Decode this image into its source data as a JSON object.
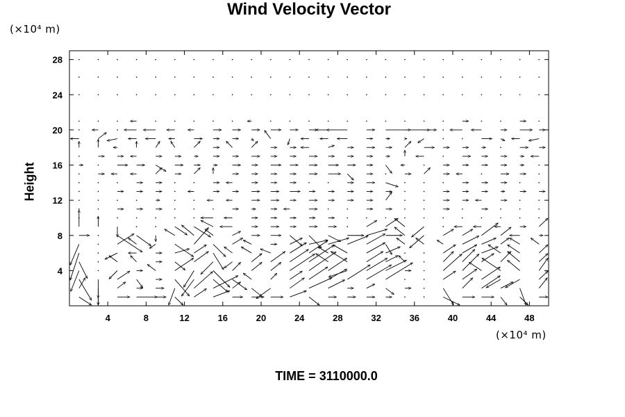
{
  "chart_data": {
    "type": "vector-field",
    "title": "Wind Velocity Vector",
    "ylabel": "Height",
    "x_unit": "(×10⁴ m)",
    "y_unit": "(×10⁴ m)",
    "footer": "TIME = 3110000.0",
    "xlim": [
      0,
      50
    ],
    "ylim": [
      0,
      29
    ],
    "x_ticks": [
      "4",
      "8",
      "12",
      "16",
      "20",
      "24",
      "28",
      "32",
      "36",
      "40",
      "44",
      "48"
    ],
    "y_ticks": [
      "4",
      "8",
      "12",
      "16",
      "20",
      "24",
      "28"
    ],
    "x_tick_values": [
      4,
      8,
      12,
      16,
      20,
      24,
      28,
      32,
      36,
      40,
      44,
      48
    ],
    "y_tick_values": [
      4,
      8,
      12,
      16,
      20,
      24,
      28
    ],
    "grid": false,
    "vectors_rows": [
      {
        "y": 28,
        "u": [
          0,
          0,
          0,
          0,
          0,
          0,
          0,
          0,
          0,
          0,
          0,
          0,
          0,
          0,
          0,
          0,
          0,
          0,
          0,
          0,
          0,
          0,
          0,
          0,
          0
        ],
        "v": [
          0,
          0,
          0,
          0,
          0,
          0,
          0,
          0,
          0,
          0,
          0,
          0,
          0,
          0,
          0,
          0,
          0,
          0,
          0,
          0,
          0,
          0,
          0,
          0,
          0
        ]
      },
      {
        "y": 26,
        "u": [
          0,
          0,
          0,
          0,
          0,
          0,
          0,
          0,
          0,
          0,
          0,
          0,
          0,
          0,
          0,
          0,
          0,
          0,
          0,
          0,
          0,
          0,
          0,
          0,
          0
        ],
        "v": [
          0,
          0,
          0,
          0,
          0,
          0,
          0,
          0,
          0,
          0,
          0,
          0,
          0,
          0,
          0,
          0,
          0,
          0,
          0,
          0,
          0,
          0,
          0,
          0,
          0
        ]
      },
      {
        "y": 24,
        "u": [
          0,
          0,
          0,
          0,
          0,
          0,
          0,
          0,
          0,
          0,
          0,
          0,
          0,
          0,
          0,
          0,
          0,
          0,
          0,
          0,
          0,
          0,
          0,
          0,
          0
        ],
        "v": [
          0,
          0,
          0,
          0,
          0,
          0,
          0,
          0,
          0,
          0,
          0,
          0,
          0,
          0,
          0,
          0,
          0,
          0,
          0,
          0,
          0,
          0,
          0,
          0,
          0
        ]
      },
      {
        "y": 21,
        "u": [
          0,
          0,
          0,
          -0.3,
          0,
          0,
          0,
          0,
          0,
          -0.2,
          0,
          0,
          0,
          0,
          0,
          0,
          0,
          0,
          0,
          0,
          0.3,
          0,
          0,
          0.3,
          0
        ],
        "v": [
          0,
          0,
          0,
          0,
          0,
          0,
          0,
          0,
          0,
          0,
          0,
          0,
          0,
          0,
          0,
          0,
          0,
          0,
          0,
          0,
          0,
          0,
          0,
          0,
          0
        ]
      },
      {
        "y": 20,
        "u": [
          0,
          -0.3,
          0,
          -0.6,
          -0.6,
          -0.4,
          -0.3,
          0.4,
          0.4,
          0.4,
          0.5,
          0.4,
          0.4,
          -0.6,
          -1.0,
          0.4,
          1.2,
          1.2,
          0.6,
          0,
          -0.6,
          -0.5,
          0.3,
          0.6,
          0.3
        ],
        "v": [
          0,
          0,
          0,
          0,
          0,
          0,
          0,
          0,
          0,
          0,
          0,
          0,
          0,
          0,
          0,
          0,
          0,
          0,
          0,
          0,
          0,
          0,
          0,
          0,
          0
        ]
      },
      {
        "y": 19,
        "u": [
          -0.6,
          0.4,
          -0.5,
          -0.4,
          -0.5,
          -0.3,
          0.4,
          0.3,
          0.3,
          0.1,
          -0.3,
          -0.1,
          -0.4,
          -0.4,
          -0.5,
          0.3,
          0.2,
          0.1,
          -0.3,
          0,
          0,
          0.5,
          0.2,
          -0.4,
          -0.5
        ],
        "v": [
          0,
          0.3,
          -0.1,
          0,
          0,
          0,
          0,
          0,
          0,
          -0.1,
          0.4,
          -0.3,
          0,
          0,
          0,
          0,
          0,
          0,
          -0.2,
          0,
          0,
          0,
          -0.1,
          0,
          -0.1
        ]
      },
      {
        "y": 18,
        "u": [
          0,
          0,
          -0.2,
          0,
          0.2,
          -0.2,
          0.3,
          0.3,
          -0.3,
          0.3,
          0.3,
          0.3,
          -0.4,
          0.3,
          0.3,
          0.4,
          0.3,
          0.3,
          0.5,
          0.3,
          0.3,
          0.2,
          0,
          0.4,
          0.3
        ],
        "v": [
          0.3,
          0.4,
          0,
          0.3,
          0.3,
          0.3,
          0.3,
          0,
          0.3,
          0.3,
          0,
          0,
          0,
          0.1,
          0,
          0,
          0,
          0.3,
          0,
          0,
          0,
          0,
          0,
          0,
          0
        ]
      },
      {
        "y": 17,
        "u": [
          0,
          0.3,
          0.3,
          -0.3,
          0.3,
          0.3,
          0.2,
          0.3,
          0.3,
          0.4,
          0.3,
          0.3,
          0.4,
          0.3,
          0.3,
          0.3,
          0.2,
          0,
          -0.4,
          0,
          0.4,
          0.3,
          0.3,
          0.2,
          -0.4
        ],
        "v": [
          0,
          0,
          0,
          0,
          0,
          0,
          0,
          0,
          0,
          0,
          0,
          0,
          0,
          0,
          0,
          0,
          0,
          0.3,
          0,
          0,
          0,
          0,
          0,
          0,
          0
        ]
      },
      {
        "y": 16,
        "u": [
          0.2,
          0,
          0.5,
          0.4,
          0.5,
          0.4,
          0.3,
          0.2,
          0.4,
          0.3,
          0.5,
          0.4,
          0.4,
          0.5,
          0.4,
          0.3,
          0.3,
          -0.2,
          0,
          0.3,
          0.3,
          0.3,
          0.3,
          0.2,
          0
        ],
        "v": [
          0,
          0,
          0,
          0,
          -0.3,
          0,
          0,
          0,
          0,
          0,
          0,
          0,
          0,
          0,
          0,
          0,
          -0.4,
          0,
          0,
          0,
          0,
          0,
          0,
          0,
          0
        ]
      },
      {
        "y": 15,
        "u": [
          0,
          0.3,
          -0.3,
          -0.3,
          0.3,
          0.3,
          0.3,
          0,
          0.3,
          0.3,
          0.3,
          0.3,
          0.4,
          0.6,
          0.3,
          0.3,
          0,
          0.3,
          0.3,
          0.3,
          -0.3,
          0,
          0.4,
          0.3,
          0
        ],
        "v": [
          0,
          0,
          0,
          0,
          0.3,
          0,
          0.3,
          0.3,
          0,
          0,
          0,
          0,
          0,
          0,
          -0.3,
          0,
          0,
          0,
          0.3,
          0,
          0,
          0,
          0,
          0,
          0
        ]
      },
      {
        "y": 14,
        "u": [
          0,
          0,
          0,
          0.3,
          0.3,
          0,
          0,
          0.3,
          -0.3,
          0.3,
          0.3,
          0.3,
          0,
          0,
          0.3,
          0.4,
          0.6,
          0,
          0,
          0,
          0.3,
          0.3,
          0.3,
          0,
          0
        ],
        "v": [
          0,
          0,
          0,
          0,
          0,
          0,
          0,
          0,
          0,
          0,
          0,
          0,
          0,
          0,
          0,
          0,
          -0.2,
          0,
          0,
          0,
          0,
          0,
          0,
          0,
          0
        ]
      },
      {
        "y": 13,
        "u": [
          0,
          0,
          0.3,
          0.3,
          0.3,
          0,
          -0.3,
          0.3,
          0.3,
          0.4,
          0.4,
          0.5,
          0.3,
          0.3,
          0.3,
          0.3,
          0.3,
          0,
          0,
          0.3,
          0.3,
          0.3,
          0.2,
          0.3,
          0.3
        ],
        "v": [
          0,
          0,
          0,
          0,
          0,
          0,
          0,
          0,
          0,
          0,
          0,
          0,
          0,
          0,
          0,
          0,
          0,
          0,
          0,
          0,
          0,
          0,
          0,
          0,
          0
        ]
      },
      {
        "y": 12,
        "u": [
          0,
          0,
          0,
          0,
          0.2,
          0,
          0,
          -0.3,
          -0.3,
          0.4,
          0.4,
          0.3,
          0.4,
          0.3,
          0.3,
          0.3,
          0.3,
          0,
          0,
          0.3,
          0.3,
          -0.3,
          0.3,
          0,
          0
        ],
        "v": [
          0,
          0,
          0,
          0,
          0,
          0,
          0,
          0,
          0,
          0,
          0,
          0,
          0,
          0,
          0,
          0,
          0.4,
          0,
          0,
          0,
          0,
          0,
          0,
          0,
          0
        ]
      },
      {
        "y": 11,
        "u": [
          0,
          0,
          0.3,
          0.3,
          0.3,
          0,
          0,
          0,
          0.3,
          0.2,
          0.3,
          -0.3,
          0.4,
          0,
          0,
          0.3,
          0.3,
          0,
          0,
          0.3,
          0,
          0.3,
          0,
          0,
          0
        ],
        "v": [
          0,
          0,
          0,
          0,
          0,
          0,
          0,
          0,
          0,
          0,
          0,
          0,
          0,
          0,
          0,
          0,
          0,
          0,
          0,
          0,
          0,
          0,
          0,
          0,
          0
        ]
      },
      {
        "y": 10,
        "u": [
          0,
          0,
          0,
          0,
          0,
          0,
          0,
          -0.6,
          -0.4,
          0.3,
          0.3,
          0.3,
          0.3,
          0.3,
          0,
          0,
          0,
          0,
          0,
          0,
          0,
          0,
          0,
          0,
          0
        ],
        "v": [
          0,
          0,
          0,
          0,
          0,
          0,
          0,
          0,
          0,
          0,
          0,
          0,
          0,
          0,
          0,
          0,
          0,
          0,
          0,
          0,
          0,
          0,
          0,
          0,
          0
        ]
      },
      {
        "y": 9,
        "u": [
          0,
          0,
          0,
          0,
          0,
          0.6,
          0.8,
          -0.6,
          -0.6,
          0.3,
          0.4,
          0.3,
          0.4,
          0.4,
          0,
          0.5,
          0.6,
          -0.5,
          -0.6,
          0,
          -0.4,
          -0.4,
          -0.3,
          0.3,
          0.5
        ],
        "v": [
          0.8,
          0.5,
          -0.5,
          0,
          0,
          -0.4,
          -0.5,
          0.3,
          0,
          0,
          0,
          0,
          0,
          0,
          0,
          0.3,
          0.4,
          0.4,
          -0.5,
          0,
          0,
          0,
          0,
          0,
          0.4
        ]
      },
      {
        "y": 8,
        "u": [
          0.5,
          0,
          1.2,
          0.7,
          0,
          -0.5,
          -0.6,
          -0.4,
          0.4,
          0.4,
          0.5,
          0.6,
          0.6,
          0.6,
          0.8,
          1.0,
          0.8,
          -0.5,
          -0.7,
          0.5,
          0.5,
          0.8,
          0.5,
          -0.5,
          0.2
        ],
        "v": [
          0,
          0,
          -0.8,
          -0.5,
          -0.3,
          0.3,
          0.5,
          0.3,
          0.2,
          0,
          0,
          -0.5,
          -0.6,
          -0.3,
          0,
          0.3,
          0,
          0.4,
          -0.6,
          0.3,
          0.3,
          0.6,
          0.4,
          0,
          0
        ]
      },
      {
        "y": 7,
        "u": [
          -0.5,
          0,
          0.8,
          -0.4,
          -0.3,
          0.9,
          0.7,
          0.6,
          0.5,
          -0.4,
          0.3,
          0.6,
          0.9,
          1.0,
          1.0,
          0.9,
          0.3,
          -0.4,
          -0.4,
          -0.3,
          0.8,
          0.7,
          0.4,
          -0.5,
          -0.4
        ],
        "v": [
          -1.0,
          0,
          0.5,
          0.3,
          -0.2,
          -0.6,
          0.8,
          -0.6,
          0.3,
          0.2,
          0,
          0.3,
          0.2,
          0.3,
          0.4,
          0.5,
          -0.5,
          0.3,
          0.3,
          0.2,
          0.4,
          0.3,
          0.3,
          0.3,
          0.3
        ]
      },
      {
        "y": 6,
        "u": [
          -0.6,
          0,
          -0.6,
          -0.4,
          0.3,
          0.7,
          0.6,
          0.5,
          -0.4,
          -0.5,
          -0.5,
          0.8,
          0.9,
          -0.5,
          -0.7,
          0.9,
          0.7,
          0,
          0,
          0.6,
          0.7,
          0.8,
          -0.6,
          -0.6,
          0.6
        ],
        "v": [
          -1.3,
          0,
          -0.3,
          0,
          0,
          0.2,
          0.4,
          -0.8,
          0.3,
          0.3,
          0.2,
          0.5,
          0.6,
          0.3,
          0.4,
          0.5,
          0.3,
          0,
          0,
          0.4,
          0.4,
          0.3,
          0.4,
          0.4,
          0.4
        ]
      },
      {
        "y": 5,
        "u": [
          0.4,
          0,
          -0.4,
          -0.3,
          0.3,
          0.5,
          0.7,
          -0.6,
          -0.4,
          0.5,
          0.7,
          0.9,
          1.2,
          -0.6,
          -0.8,
          0.8,
          0.6,
          -0.3,
          0,
          0.5,
          0.6,
          0.6,
          0.5,
          -0.6,
          0.6
        ],
        "v": [
          -0.8,
          0,
          0.3,
          0.3,
          0,
          -0.4,
          0.5,
          -0.6,
          -0.3,
          0.4,
          0.5,
          0.6,
          0.8,
          0.4,
          0.5,
          0.5,
          0.3,
          0.3,
          0,
          0.5,
          0.6,
          0.4,
          0.5,
          0.5,
          0.4
        ]
      },
      {
        "y": 4,
        "u": [
          -0.4,
          0,
          -0.4,
          0.3,
          -0.4,
          0.9,
          -0.5,
          0.8,
          0.4,
          0.5,
          0.5,
          1.2,
          1.3,
          0.9,
          -0.9,
          1.0,
          1.0,
          0.3,
          0,
          0.9,
          0.8,
          -0.6,
          -0.9,
          -0.6,
          0.9
        ],
        "v": [
          -1.0,
          0,
          -0.4,
          0,
          0.3,
          0.6,
          -0.8,
          -0.8,
          0.4,
          0.4,
          0.4,
          0.8,
          0.9,
          0.6,
          -0.3,
          0.6,
          0.5,
          0,
          0,
          0.8,
          0.8,
          0.4,
          0.6,
          0.5,
          0.6
        ]
      },
      {
        "y": 3,
        "u": [
          0.6,
          0,
          0.6,
          0.3,
          0.3,
          0.7,
          -0.6,
          0.7,
          0.7,
          -0.4,
          0.3,
          0.6,
          0.9,
          0.9,
          1.1,
          1.2,
          1.3,
          0,
          0,
          0.6,
          0.7,
          0.9,
          -0.7,
          -0.7,
          0.6
        ],
        "v": [
          -1.0,
          -0.9,
          0.4,
          -0.4,
          0,
          -0.8,
          -0.8,
          -0.6,
          -0.5,
          0.3,
          0.3,
          0.4,
          0.6,
          0.5,
          0.7,
          0.7,
          0.8,
          0,
          0,
          0.4,
          0.5,
          0.6,
          -0.4,
          -0.4,
          0.4
        ]
      },
      {
        "y": 2,
        "u": [
          0.3,
          0,
          0.4,
          0.3,
          0.4,
          -0.3,
          0.9,
          1.2,
          0.4,
          0.5,
          -0.7,
          0.7,
          1.1,
          0.8,
          0.3,
          0.4,
          0.4,
          0.3,
          0,
          0.5,
          0.5,
          0.9,
          0.6,
          0.3,
          0.4
        ],
        "v": [
          0.5,
          -1.5,
          0.3,
          0,
          0,
          -1.2,
          0.8,
          0.6,
          0.3,
          -0.4,
          -0.5,
          0.5,
          0.5,
          0.4,
          0,
          0.2,
          -0.3,
          0,
          0,
          -0.8,
          0.5,
          0.6,
          0.3,
          -1.5,
          0.5
        ]
      },
      {
        "y": 1,
        "u": [
          0.6,
          0,
          0.6,
          1.0,
          0.5,
          0.4,
          0.6,
          0.8,
          0.5,
          0.6,
          0.6,
          0.8,
          0.5,
          0.4,
          0.4,
          0.4,
          0.3,
          0,
          0,
          0.8,
          0.6,
          0.6,
          0.3,
          0.4,
          0.5
        ],
        "v": [
          -0.8,
          -1.0,
          0,
          0,
          0,
          -0.8,
          0.4,
          0.3,
          0,
          0,
          0,
          0.3,
          -0.4,
          0,
          0,
          0,
          0,
          0,
          0,
          -0.5,
          0,
          0,
          -0.8,
          -0.8,
          0
        ]
      }
    ]
  }
}
